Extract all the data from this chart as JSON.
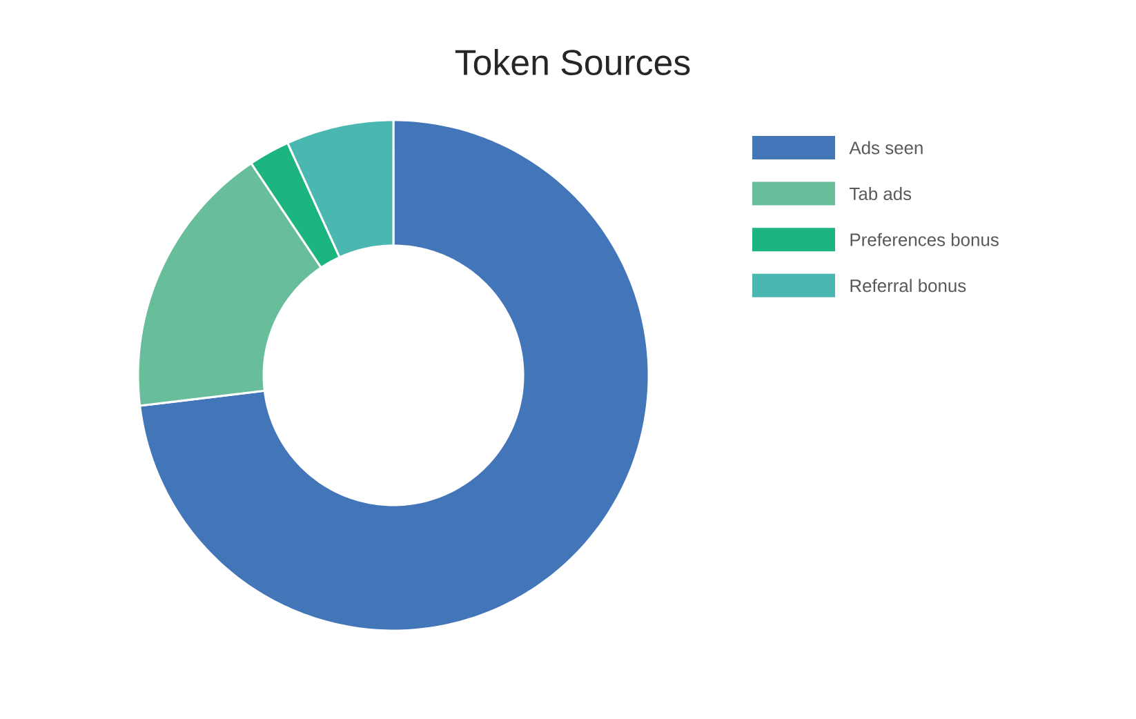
{
  "chart_data": {
    "type": "donut",
    "title": "Token Sources",
    "categories": [
      "Ads seen",
      "Tab ads",
      "Preferences bonus",
      "Referral bonus"
    ],
    "values": [
      73.1,
      17.5,
      2.6,
      6.8
    ],
    "colors": [
      "#4375b9",
      "#68bd9a",
      "#1db57f",
      "#4ab8b0"
    ],
    "legend": "right"
  }
}
